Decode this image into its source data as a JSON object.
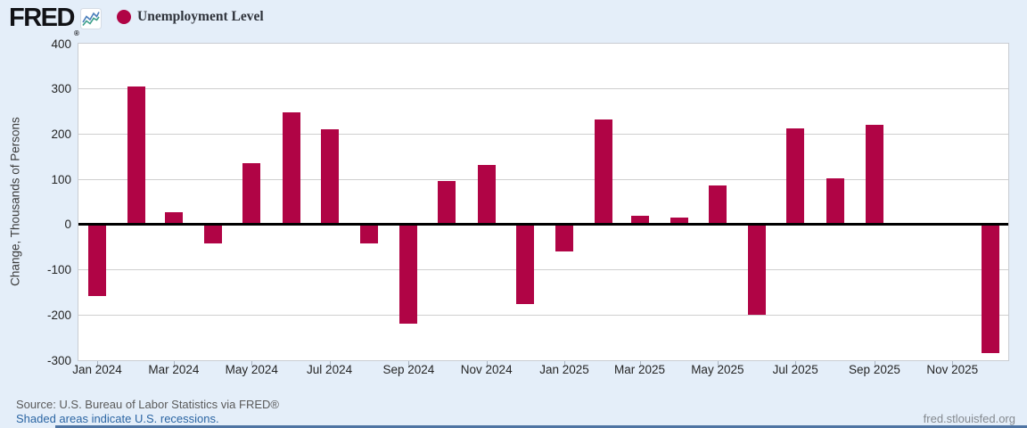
{
  "header": {
    "logo": "FRED",
    "registered_mark": "®",
    "chart_icon": "fred-sparkline-icon",
    "legend": {
      "label": "Unemployment Level",
      "dot_color": "#b00445"
    }
  },
  "chart_data": {
    "type": "bar",
    "title": "",
    "xlabel": "",
    "ylabel": "Change, Thousands of Persons",
    "ylim": [
      -300,
      400
    ],
    "y_ticks": [
      400,
      300,
      200,
      100,
      0,
      -100,
      -200,
      -300
    ],
    "x_tick_labels": [
      "Jan 2024",
      "Mar 2024",
      "May 2024",
      "Jul 2024",
      "Sep 2024",
      "Nov 2024",
      "Jan 2025",
      "Mar 2025",
      "May 2025",
      "Jul 2025",
      "Sep 2025",
      "Nov 2025"
    ],
    "grid": true,
    "legend_position": "top-left",
    "bar_color": "#b00445",
    "series": [
      {
        "name": "Unemployment Level",
        "points": [
          {
            "month": "Jan 2024",
            "value": -156
          },
          {
            "month": "Feb 2024",
            "value": 306
          },
          {
            "month": "Mar 2024",
            "value": 28
          },
          {
            "month": "Apr 2024",
            "value": -39
          },
          {
            "month": "May 2024",
            "value": 136
          },
          {
            "month": "Jun 2024",
            "value": 249
          },
          {
            "month": "Jul 2024",
            "value": 211
          },
          {
            "month": "Aug 2024",
            "value": -39
          },
          {
            "month": "Sep 2024",
            "value": -216
          },
          {
            "month": "Oct 2024",
            "value": 96
          },
          {
            "month": "Nov 2024",
            "value": 131
          },
          {
            "month": "Dec 2024",
            "value": -172
          },
          {
            "month": "Jan 2025",
            "value": -57
          },
          {
            "month": "Feb 2025",
            "value": 232
          },
          {
            "month": "Mar 2025",
            "value": 19
          },
          {
            "month": "Apr 2025",
            "value": 16
          },
          {
            "month": "May 2025",
            "value": 87
          },
          {
            "month": "Jun 2025",
            "value": -197
          },
          {
            "month": "Jul 2025",
            "value": 212
          },
          {
            "month": "Aug 2025",
            "value": 102
          },
          {
            "month": "Sep 2025",
            "value": 220
          },
          {
            "month": "Oct 2025",
            "value": null
          },
          {
            "month": "Nov 2025",
            "value": null
          },
          {
            "month": "Dec 2025",
            "value": -281
          }
        ]
      }
    ]
  },
  "footer": {
    "source_line": "Source: U.S. Bureau of Labor Statistics via FRED®",
    "recession_note": "Shaded areas indicate U.S. recessions.",
    "site_link": "fred.stlouisfed.org"
  }
}
